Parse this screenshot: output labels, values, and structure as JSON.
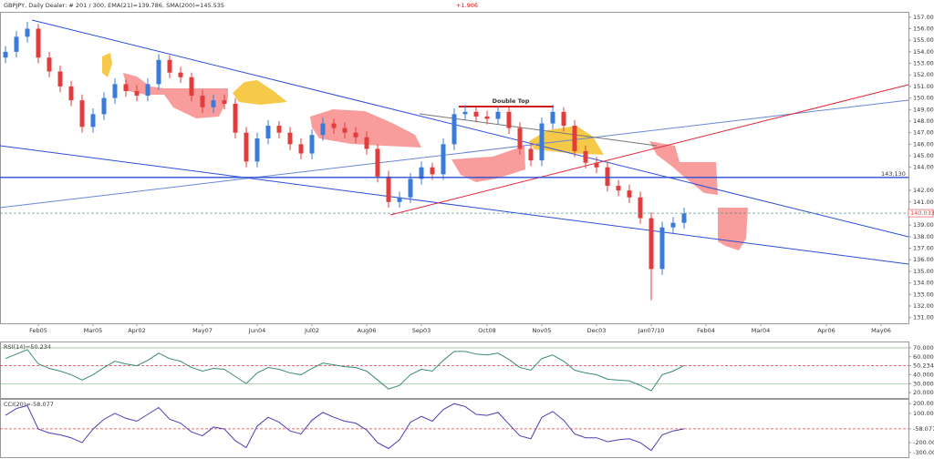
{
  "header": {
    "info": "GBPJPY, Daily  Dealer: # 201 / 300, EMA(21)=139.786, SMA(200)=145.535",
    "change": "+1.906"
  },
  "annotations": {
    "pattern": "Double Top",
    "level": {
      "value": 143.13,
      "label": "143.130"
    },
    "last_price": {
      "value": 140.033,
      "label": "140.033"
    }
  },
  "chart_data": [
    {
      "type": "candlestick",
      "categories": [
        null,
        null,
        null,
        "Feb05",
        null,
        null,
        null,
        null,
        "Mar05",
        null,
        null,
        null,
        "Apr02",
        null,
        null,
        null,
        null,
        null,
        "May07",
        null,
        null,
        null,
        null,
        "Jun04",
        null,
        null,
        null,
        null,
        "Jul02",
        null,
        null,
        null,
        null,
        "Aug06",
        null,
        null,
        null,
        null,
        "Sep03",
        null,
        null,
        null,
        null,
        null,
        "Oct08",
        null,
        null,
        null,
        null,
        "Nov05",
        null,
        null,
        null,
        null,
        "Dec03",
        null,
        null,
        null,
        null,
        "Jan07/10",
        null,
        null,
        null,
        null,
        "Feb04",
        null,
        null,
        null,
        null,
        "Mar04",
        null,
        null,
        null,
        null,
        null,
        "Apr06",
        null,
        null,
        null,
        null,
        "May06",
        null,
        null
      ],
      "open": [
        153.5,
        154.0,
        155.3,
        156.0,
        153.5,
        152.3,
        151.0,
        149.8,
        147.5,
        148.6,
        150.0,
        151.2,
        150.6,
        150.2,
        151.2,
        153.3,
        152.2,
        151.8,
        150.2,
        149.2,
        149.8,
        149.5,
        147.0,
        144.5,
        146.5,
        147.6,
        147.0,
        146.0,
        145.2,
        146.8,
        147.8,
        147.4,
        147.0,
        146.6,
        145.6,
        143.2,
        141.0,
        141.4,
        143.0,
        144.0,
        143.4,
        146.0,
        148.6,
        148.8,
        148.4,
        148.2,
        148.8,
        147.4,
        145.6,
        144.6,
        147.8,
        148.8,
        147.6,
        145.4,
        144.4,
        144.0,
        142.4,
        142.0,
        141.4,
        139.6,
        135.2,
        138.8,
        139.2,
        null,
        null,
        null,
        null,
        null,
        null,
        null,
        null,
        null,
        null,
        null,
        null,
        null,
        null,
        null,
        null,
        null,
        null,
        null,
        null
      ],
      "high": [
        154.5,
        155.8,
        156.6,
        156.4,
        154.0,
        152.8,
        151.5,
        150.3,
        149.1,
        150.5,
        151.7,
        151.6,
        151.1,
        151.7,
        153.8,
        153.7,
        152.7,
        152.2,
        150.7,
        150.3,
        150.3,
        150.0,
        147.5,
        147.0,
        148.1,
        148.0,
        147.5,
        146.5,
        147.3,
        148.3,
        148.2,
        147.9,
        147.5,
        147.1,
        146.0,
        143.7,
        141.9,
        143.5,
        144.5,
        144.4,
        146.5,
        149.1,
        149.4,
        149.2,
        148.9,
        149.3,
        149.2,
        147.9,
        146.1,
        148.3,
        149.4,
        149.2,
        148.1,
        145.9,
        144.9,
        144.5,
        142.9,
        142.5,
        141.9,
        140.1,
        139.3,
        139.7,
        140.5,
        null,
        null,
        null,
        null,
        null,
        null,
        null,
        null,
        null,
        null,
        null,
        null,
        null,
        null,
        null,
        null,
        null,
        null,
        null,
        null
      ],
      "low": [
        153.0,
        153.5,
        154.8,
        153.0,
        151.8,
        150.5,
        149.3,
        147.0,
        147.0,
        148.1,
        149.5,
        150.1,
        149.7,
        149.7,
        150.7,
        151.7,
        151.3,
        149.7,
        148.7,
        148.7,
        149.0,
        146.5,
        144.0,
        144.0,
        146.0,
        146.5,
        145.5,
        144.7,
        144.7,
        146.3,
        146.9,
        146.5,
        146.1,
        145.1,
        142.7,
        140.5,
        140.5,
        140.9,
        142.5,
        142.9,
        142.9,
        145.5,
        148.1,
        147.9,
        147.7,
        147.7,
        146.9,
        145.1,
        144.1,
        144.1,
        147.3,
        147.1,
        144.9,
        143.9,
        143.5,
        141.9,
        141.5,
        140.9,
        139.1,
        132.5,
        134.7,
        138.3,
        138.7,
        null,
        null,
        null,
        null,
        null,
        null,
        null,
        null,
        null,
        null,
        null,
        null,
        null,
        null,
        null,
        null,
        null,
        null,
        null,
        null
      ],
      "close": [
        154.0,
        155.3,
        156.0,
        153.5,
        152.3,
        151.0,
        149.8,
        147.5,
        148.6,
        150.0,
        151.2,
        150.6,
        150.2,
        151.2,
        153.3,
        152.2,
        151.8,
        150.2,
        149.2,
        149.8,
        149.5,
        147.0,
        144.5,
        146.5,
        147.6,
        147.0,
        146.0,
        145.2,
        146.8,
        147.8,
        147.4,
        147.0,
        146.6,
        145.6,
        143.2,
        141.0,
        141.4,
        143.0,
        144.0,
        143.4,
        146.0,
        148.6,
        148.8,
        148.4,
        148.2,
        148.8,
        147.4,
        145.6,
        144.6,
        147.8,
        148.8,
        147.6,
        145.4,
        144.4,
        144.0,
        142.4,
        142.0,
        141.4,
        139.6,
        135.2,
        138.8,
        139.2,
        140.0,
        null,
        null,
        null,
        null,
        null,
        null,
        null,
        null,
        null,
        null,
        null,
        null,
        null,
        null,
        null,
        null,
        null,
        null,
        null,
        null
      ],
      "up_color": "#3b7bd8",
      "down_color": "#e23d3d",
      "ylim": [
        130.5,
        157.3
      ],
      "yticks": [
        {
          "value": 131,
          "label": "131.000"
        },
        {
          "value": 132,
          "label": "132.000"
        },
        {
          "value": 133,
          "label": "133.000"
        },
        {
          "value": 134,
          "label": "134.000"
        },
        {
          "value": 135,
          "label": "135.000"
        },
        {
          "value": 136,
          "label": "136.000"
        },
        {
          "value": 137,
          "label": "137.000"
        },
        {
          "value": 138,
          "label": "138.000"
        },
        {
          "value": 139,
          "label": "139.000"
        },
        {
          "value": 141,
          "label": "141.000"
        },
        {
          "value": 142,
          "label": "142.000"
        },
        {
          "value": 144,
          "label": "144.000"
        },
        {
          "value": 145,
          "label": "145.000"
        },
        {
          "value": 146,
          "label": "146.000"
        },
        {
          "value": 147,
          "label": "147.000"
        },
        {
          "value": 148,
          "label": "148.000"
        },
        {
          "value": 149,
          "label": "149.000"
        },
        {
          "value": 150,
          "label": "150.000"
        },
        {
          "value": 151,
          "label": "151.000"
        },
        {
          "value": 152,
          "label": "152.000"
        },
        {
          "value": 153,
          "label": "153.000"
        },
        {
          "value": 154,
          "label": "154.000"
        },
        {
          "value": 155,
          "label": "155.000"
        },
        {
          "value": 156,
          "label": "156.000"
        },
        {
          "value": 157,
          "label": "157.000"
        }
      ]
    },
    {
      "type": "line",
      "title": "RSI(14)=50.234",
      "color": "#3a8a7a",
      "values": [
        58,
        63,
        68,
        52,
        47,
        44,
        40,
        34,
        40,
        48,
        55,
        52,
        50,
        56,
        64,
        58,
        55,
        48,
        44,
        47,
        46,
        38,
        30,
        42,
        48,
        46,
        42,
        40,
        47,
        53,
        51,
        49,
        48,
        44,
        34,
        24,
        28,
        40,
        46,
        44,
        56,
        66,
        66,
        63,
        62,
        64,
        57,
        48,
        45,
        58,
        62,
        55,
        45,
        42,
        40,
        35,
        34,
        33,
        28,
        22,
        40,
        44,
        50.234
      ],
      "ylim": [
        15,
        75
      ],
      "yticks": [
        {
          "value": 20,
          "label": "20.000"
        },
        {
          "value": 30,
          "label": "30.000"
        },
        {
          "value": 40,
          "label": "40.000"
        },
        {
          "value": 50.234,
          "label": "50.234"
        },
        {
          "value": 60,
          "label": "60.000"
        },
        {
          "value": 70,
          "label": "70.000"
        }
      ]
    },
    {
      "type": "line",
      "title": "CCI(20)=-58.077",
      "color": "#4a3fb0",
      "values": [
        80,
        150,
        180,
        -60,
        -100,
        -120,
        -150,
        -200,
        -60,
        40,
        100,
        50,
        20,
        90,
        160,
        40,
        0,
        -90,
        -130,
        -40,
        -60,
        -180,
        -250,
        -30,
        60,
        10,
        -80,
        -110,
        30,
        110,
        60,
        20,
        0,
        -70,
        -200,
        -260,
        -170,
        10,
        70,
        20,
        140,
        200,
        170,
        90,
        80,
        110,
        -10,
        -130,
        -160,
        60,
        120,
        30,
        -110,
        -150,
        -150,
        -190,
        -170,
        -160,
        -200,
        -280,
        -120,
        -80,
        -58.077
      ],
      "ylim": [
        -330,
        230
      ],
      "yticks": [
        {
          "value": 200,
          "label": "200.000"
        },
        {
          "value": 100,
          "label": "100.000"
        },
        {
          "value": -58.077,
          "label": "-58.077"
        },
        {
          "value": -200,
          "label": "-200.000"
        },
        {
          "value": -300,
          "label": "-300.000"
        }
      ]
    }
  ]
}
